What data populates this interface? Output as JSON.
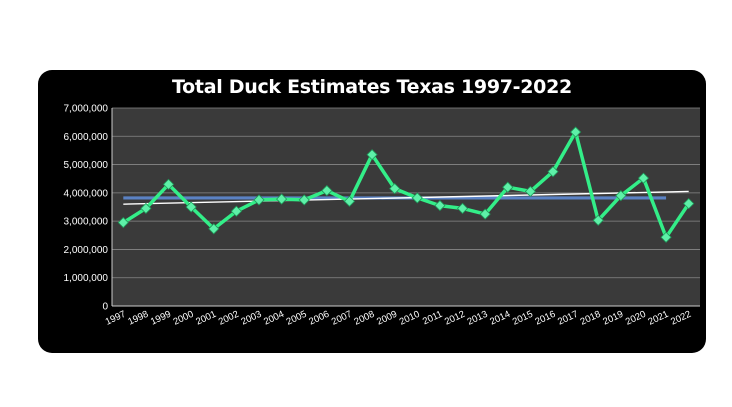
{
  "chart_data": {
    "type": "line",
    "title": "Total Duck Estimates Texas 1997-2022",
    "xlabel": "",
    "ylabel": "",
    "ylim": [
      0,
      7000000
    ],
    "yticks": [
      0,
      1000000,
      2000000,
      3000000,
      4000000,
      5000000,
      6000000,
      7000000
    ],
    "ytick_labels": [
      "0",
      "1,000,000",
      "2,000,000",
      "3,000,000",
      "4,000,000",
      "5,000,000",
      "6,000,000",
      "7,000,000"
    ],
    "grid": true,
    "categories": [
      "1997",
      "1998",
      "1999",
      "2000",
      "2001",
      "2002",
      "2003",
      "2004",
      "2005",
      "2006",
      "2007",
      "2008",
      "2009",
      "2010",
      "2011",
      "2012",
      "2013",
      "2014",
      "2015",
      "2016",
      "2017",
      "2018",
      "2019",
      "2020",
      "2021",
      "2022"
    ],
    "series": [
      {
        "values": [
          2950000,
          3450000,
          4300000,
          3500000,
          2730000,
          3350000,
          3750000,
          3780000,
          3750000,
          4080000,
          3700000,
          5350000,
          4150000,
          3820000,
          3550000,
          3450000,
          3250000,
          4200000,
          4050000,
          4750000,
          6150000,
          3030000,
          3900000,
          4520000,
          2430000,
          3620000
        ],
        "color": "#33ee88",
        "marker": "diamond"
      }
    ],
    "reference_lines": [
      {
        "type": "mean",
        "value": 3820000,
        "color": "#5b82c4",
        "from": "1997",
        "to": "2021"
      },
      {
        "type": "trend",
        "start_value": 3600000,
        "end_value": 4050000,
        "color": "#ffffff",
        "from": "1997",
        "to": "2022"
      }
    ],
    "colors": {
      "panel": "#000000",
      "plot_area": "#3a3a3a",
      "gridline": "#888888",
      "text": "#ffffff"
    }
  }
}
